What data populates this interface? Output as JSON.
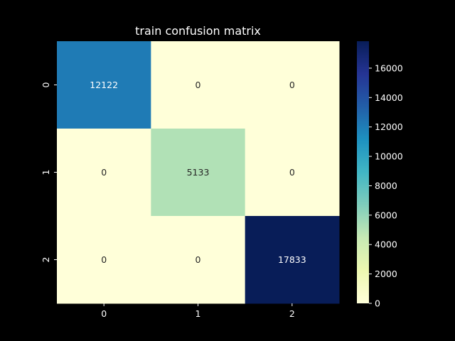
{
  "chart_data": {
    "type": "heatmap",
    "title": "train confusion matrix",
    "xlabel": "",
    "ylabel": "",
    "x_categories": [
      "0",
      "1",
      "2"
    ],
    "y_categories": [
      "0",
      "1",
      "2"
    ],
    "values": [
      [
        12122,
        0,
        0
      ],
      [
        0,
        5133,
        0
      ],
      [
        0,
        0,
        17833
      ]
    ],
    "colormap": "YlGnBu",
    "colorbar": {
      "range": [
        0,
        17833
      ],
      "ticks": [
        0,
        2000,
        4000,
        6000,
        8000,
        10000,
        12000,
        14000,
        16000
      ]
    },
    "grid": false,
    "legend": "none"
  },
  "colors": {
    "background": "#000000",
    "text": "#ffffff",
    "annotation_dark": "#262626"
  }
}
